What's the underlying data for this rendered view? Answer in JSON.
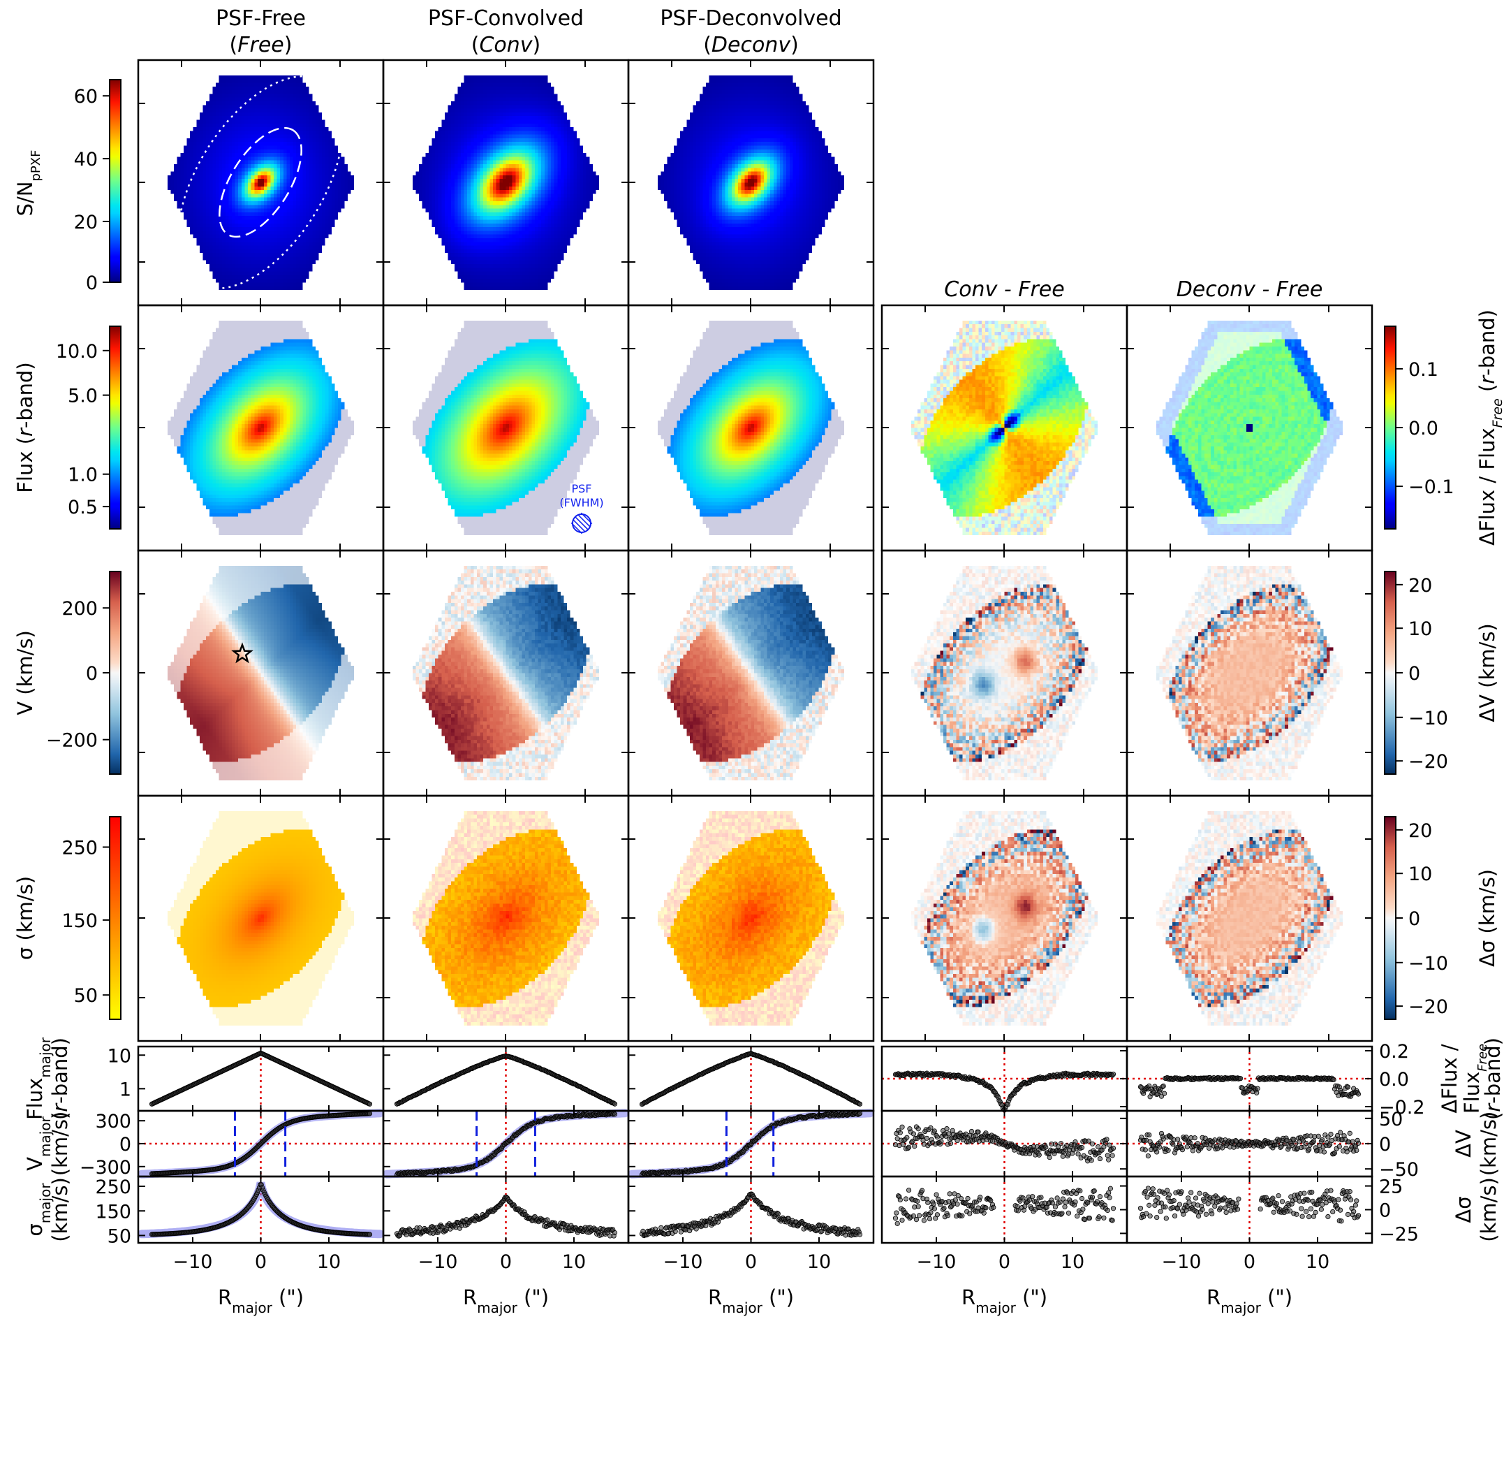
{
  "chart_data": {
    "type": "figure-grid",
    "column_titles": [
      {
        "line1": "PSF-Free",
        "line2": "(Free)"
      },
      {
        "line1": "PSF-Convolved",
        "line2": "(Conv)"
      },
      {
        "line1": "PSF-Deconvolved",
        "line2": "(Deconv)"
      }
    ],
    "diff_titles": [
      "Conv - Free",
      "Deconv - Free"
    ],
    "maps": [
      {
        "key": "sn",
        "ylabel": "S/N",
        "ylabel_sub": "pPXF",
        "cbar_ticks": [
          "0",
          "20",
          "40",
          "60"
        ],
        "range": [
          0,
          66
        ],
        "cmap": "jet"
      },
      {
        "key": "flux",
        "ylabel": "Flux (r-band)",
        "cbar_ticks": [
          "0.5",
          "1.0",
          "5.0",
          "10.0"
        ],
        "cmap": "jet"
      },
      {
        "key": "vel",
        "ylabel": "V (km/s)",
        "cbar_ticks": [
          "−200",
          "0",
          "200"
        ],
        "range": [
          -330,
          330
        ],
        "cmap": "RdBu_r"
      },
      {
        "key": "sig",
        "ylabel": "σ (km/s)",
        "cbar_ticks": [
          "50",
          "150",
          "250"
        ],
        "range": [
          20,
          290
        ],
        "cmap": "autumn_r"
      }
    ],
    "diff_maps": [
      {
        "key": "dflux",
        "ylabel": "ΔFlux / Flux",
        "ylabel_sub": "Free",
        "ylabel_tail": " (r-band)",
        "cbar_ticks": [
          "−0.1",
          "0.0",
          "0.1"
        ],
        "range": [
          -0.17,
          0.17
        ]
      },
      {
        "key": "dv",
        "ylabel": "ΔV (km/s)",
        "cbar_ticks": [
          "−20",
          "−10",
          "0",
          "10",
          "20"
        ],
        "range": [
          -23,
          23
        ]
      },
      {
        "key": "dsig",
        "ylabel": "Δσ (km/s)",
        "cbar_ticks": [
          "−20",
          "−10",
          "0",
          "10",
          "20"
        ],
        "range": [
          -23,
          23
        ]
      }
    ],
    "psf_label": [
      "PSF",
      "(FWHM)"
    ],
    "profiles": {
      "xlabel": "R",
      "xlabel_sub": "major",
      "xlabel_tail": " (\")",
      "x_range": [
        -18,
        18
      ],
      "x_ticks": [
        "−10",
        "0",
        "10"
      ],
      "flux": {
        "ylabel_top": "Flux",
        "ylabel_sub": "major",
        "ylabel_bottom": "(r-band)",
        "y_ticks": [
          "1",
          "10"
        ],
        "peak": [
          11.5,
          9.5,
          11.0
        ],
        "edge": 0.35
      },
      "vel": {
        "ylabel_top": "V",
        "ylabel_sub": "major",
        "ylabel_bottom": "(km/s)",
        "y_ticks": [
          "−300",
          "0",
          "300"
        ],
        "y_range": [
          -430,
          430
        ],
        "v_inner": 220,
        "v_outer": 400,
        "r_turn": 4.0,
        "dashed_r": [
          [
            -3.8,
            3.6
          ],
          [
            -4.3,
            4.3
          ],
          [
            -3.6,
            3.3
          ]
        ]
      },
      "sig": {
        "ylabel_top": "σ",
        "ylabel_sub": "major",
        "ylabel_bottom": "(km/s)",
        "y_ticks": [
          "50",
          "150",
          "250"
        ],
        "y_range": [
          20,
          290
        ],
        "center": [
          265,
          210,
          225
        ],
        "edge": 50
      },
      "dflux": {
        "ylabel_lines": [
          "ΔFlux /",
          "Flux",
          "(r-band)"
        ],
        "ylabel_sub": "Free",
        "y_ticks": [
          "−0.2",
          "0.0",
          "0.2"
        ],
        "y_range": [
          -0.23,
          0.23
        ]
      },
      "dv": {
        "ylabel_lines": [
          "ΔV",
          "(km/s)"
        ],
        "y_ticks": [
          "−50",
          "0",
          "50"
        ],
        "y_range": [
          -65,
          65
        ]
      },
      "dsig": {
        "ylabel_lines": [
          "Δσ",
          "(km/s)"
        ],
        "y_ticks": [
          "−25",
          "0",
          "25"
        ],
        "y_range": [
          -35,
          35
        ]
      }
    }
  }
}
